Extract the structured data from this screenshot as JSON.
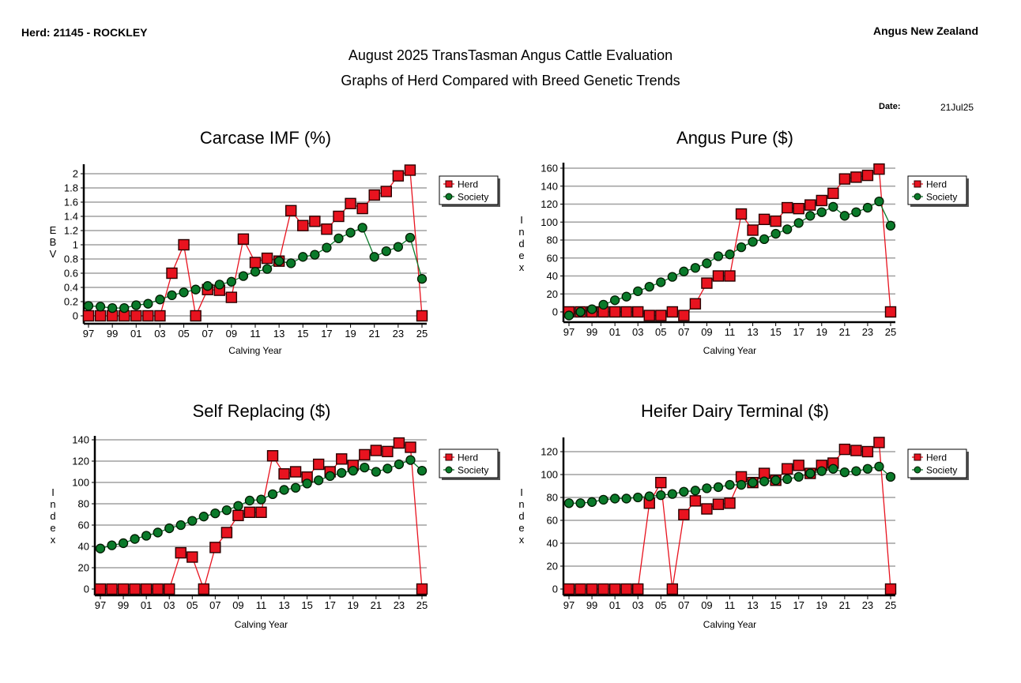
{
  "header": {
    "herd": "Herd: 21145 - ROCKLEY",
    "organisation": "Angus New Zealand",
    "title": "August 2025 TransTasman Angus Cattle Evaluation",
    "subtitle": "Graphs of Herd Compared with Breed Genetic Trends",
    "date_label": "Date:",
    "date_value": "21Jul25"
  },
  "colors": {
    "herd": "#e8131f",
    "society": "#0a7a2a",
    "grid": "#a0a0a0"
  },
  "chart_data": [
    {
      "type": "line",
      "title": "Carcase IMF (%)",
      "xlabel": "Calving Year",
      "ylabel": "EBV",
      "ylim": [
        0,
        2
      ],
      "yticks": [
        0,
        0.2,
        0.4,
        0.6,
        0.8,
        1,
        1.2,
        1.4,
        1.6,
        1.8,
        2
      ],
      "ytick_labels": [
        "0",
        "0.2",
        "0.4",
        "0.6",
        "0.8",
        "1",
        "1.2",
        "1.4",
        "1.6",
        "1.8",
        "2"
      ],
      "grid": true,
      "legend": "right",
      "x": [
        "97",
        "98",
        "99",
        "00",
        "01",
        "02",
        "03",
        "04",
        "05",
        "06",
        "07",
        "08",
        "09",
        "10",
        "11",
        "12",
        "13",
        "14",
        "15",
        "16",
        "17",
        "18",
        "19",
        "20",
        "21",
        "22",
        "23",
        "24",
        "25"
      ],
      "xtick_labels": [
        "97",
        "99",
        "01",
        "03",
        "05",
        "07",
        "09",
        "11",
        "13",
        "15",
        "17",
        "19",
        "21",
        "23",
        "25"
      ],
      "series": [
        {
          "name": "Herd",
          "values": [
            0,
            0,
            0,
            0,
            0,
            0,
            0,
            0.6,
            1.0,
            0,
            0.37,
            0.36,
            0.26,
            1.08,
            0.75,
            0.81,
            0.77,
            1.48,
            1.27,
            1.33,
            1.22,
            1.4,
            1.58,
            1.51,
            1.7,
            1.75,
            1.97,
            2.05,
            0
          ]
        },
        {
          "name": "Society",
          "values": [
            0.14,
            0.13,
            0.11,
            0.11,
            0.15,
            0.17,
            0.23,
            0.29,
            0.33,
            0.37,
            0.42,
            0.44,
            0.48,
            0.56,
            0.62,
            0.66,
            0.77,
            0.74,
            0.83,
            0.86,
            0.96,
            1.09,
            1.17,
            1.24,
            0.83,
            0.91,
            0.97,
            1.1,
            0.52
          ]
        }
      ]
    },
    {
      "type": "line",
      "title": "Angus Pure ($)",
      "xlabel": "Calving Year",
      "ylabel": "Index",
      "ylim": [
        -10,
        165
      ],
      "yticks": [
        0,
        20,
        40,
        60,
        80,
        100,
        120,
        140,
        160
      ],
      "ytick_labels": [
        "0",
        "20",
        "40",
        "60",
        "80",
        "100",
        "120",
        "140",
        "160"
      ],
      "grid": true,
      "legend": "right",
      "x": [
        "97",
        "98",
        "99",
        "00",
        "01",
        "02",
        "03",
        "04",
        "05",
        "06",
        "07",
        "08",
        "09",
        "10",
        "11",
        "12",
        "13",
        "14",
        "15",
        "16",
        "17",
        "18",
        "19",
        "20",
        "21",
        "22",
        "23",
        "24",
        "25"
      ],
      "xtick_labels": [
        "97",
        "99",
        "01",
        "03",
        "05",
        "07",
        "09",
        "11",
        "13",
        "15",
        "17",
        "19",
        "21",
        "23",
        "25"
      ],
      "series": [
        {
          "name": "Herd",
          "values": [
            0,
            0,
            0,
            0,
            0,
            0,
            0,
            -4,
            -4,
            0,
            -4,
            9,
            32,
            40,
            40,
            109,
            91,
            103,
            101,
            116,
            115,
            119,
            124,
            132,
            148,
            150,
            152,
            159,
            0
          ]
        },
        {
          "name": "Society",
          "values": [
            -4,
            0,
            3,
            8,
            13,
            17,
            23,
            28,
            33,
            39,
            45,
            49,
            54,
            62,
            64,
            72,
            78,
            81,
            87,
            92,
            99,
            107,
            111,
            117,
            107,
            111,
            116,
            123,
            96
          ]
        }
      ]
    },
    {
      "type": "line",
      "title": "Self Replacing ($)",
      "xlabel": "Calving Year",
      "ylabel": "Index",
      "ylim": [
        -5,
        140
      ],
      "yticks": [
        0,
        20,
        40,
        60,
        80,
        100,
        120,
        140
      ],
      "ytick_labels": [
        "0",
        "20",
        "40",
        "60",
        "80",
        "100",
        "120",
        "140"
      ],
      "grid": true,
      "legend": "right",
      "x": [
        "97",
        "98",
        "99",
        "00",
        "01",
        "02",
        "03",
        "04",
        "05",
        "06",
        "07",
        "08",
        "09",
        "10",
        "11",
        "12",
        "13",
        "14",
        "15",
        "16",
        "17",
        "18",
        "19",
        "20",
        "21",
        "22",
        "23",
        "24",
        "25"
      ],
      "xtick_labels": [
        "97",
        "99",
        "01",
        "03",
        "05",
        "07",
        "09",
        "11",
        "13",
        "15",
        "17",
        "19",
        "21",
        "23",
        "25"
      ],
      "series": [
        {
          "name": "Herd",
          "values": [
            0,
            0,
            0,
            0,
            0,
            0,
            0,
            34,
            30,
            0,
            39,
            53,
            69,
            72,
            72,
            125,
            108,
            110,
            105,
            117,
            110,
            122,
            116,
            126,
            130,
            129,
            137,
            133,
            0
          ]
        },
        {
          "name": "Society",
          "values": [
            38,
            41,
            43,
            47,
            50,
            53,
            57,
            60,
            64,
            68,
            71,
            74,
            78,
            83,
            84,
            89,
            93,
            95,
            99,
            102,
            106,
            109,
            111,
            114,
            110,
            113,
            117,
            121,
            111
          ]
        }
      ]
    },
    {
      "type": "line",
      "title": "Heifer Dairy Terminal ($)",
      "xlabel": "Calving Year",
      "ylabel": "Index",
      "ylim": [
        -5,
        133
      ],
      "yticks": [
        0,
        20,
        40,
        60,
        80,
        100,
        120
      ],
      "ytick_labels": [
        "0",
        "20",
        "40",
        "60",
        "80",
        "100",
        "120"
      ],
      "grid": true,
      "legend": "right",
      "x": [
        "97",
        "98",
        "99",
        "00",
        "01",
        "02",
        "03",
        "04",
        "05",
        "06",
        "07",
        "08",
        "09",
        "10",
        "11",
        "12",
        "13",
        "14",
        "15",
        "16",
        "17",
        "18",
        "19",
        "20",
        "21",
        "22",
        "23",
        "24",
        "25"
      ],
      "xtick_labels": [
        "97",
        "99",
        "01",
        "03",
        "05",
        "07",
        "09",
        "11",
        "13",
        "15",
        "17",
        "19",
        "21",
        "23",
        "25"
      ],
      "series": [
        {
          "name": "Herd",
          "values": [
            0,
            0,
            0,
            0,
            0,
            0,
            0,
            75,
            93,
            0,
            65,
            77,
            70,
            74,
            75,
            98,
            93,
            101,
            95,
            105,
            108,
            101,
            108,
            110,
            122,
            121,
            120,
            128,
            0
          ]
        },
        {
          "name": "Society",
          "values": [
            75,
            75,
            76,
            78,
            79,
            79,
            80,
            81,
            82,
            83,
            85,
            86,
            88,
            89,
            91,
            91,
            93,
            94,
            95,
            96,
            98,
            101,
            103,
            105,
            102,
            103,
            105,
            107,
            98
          ]
        }
      ]
    }
  ]
}
